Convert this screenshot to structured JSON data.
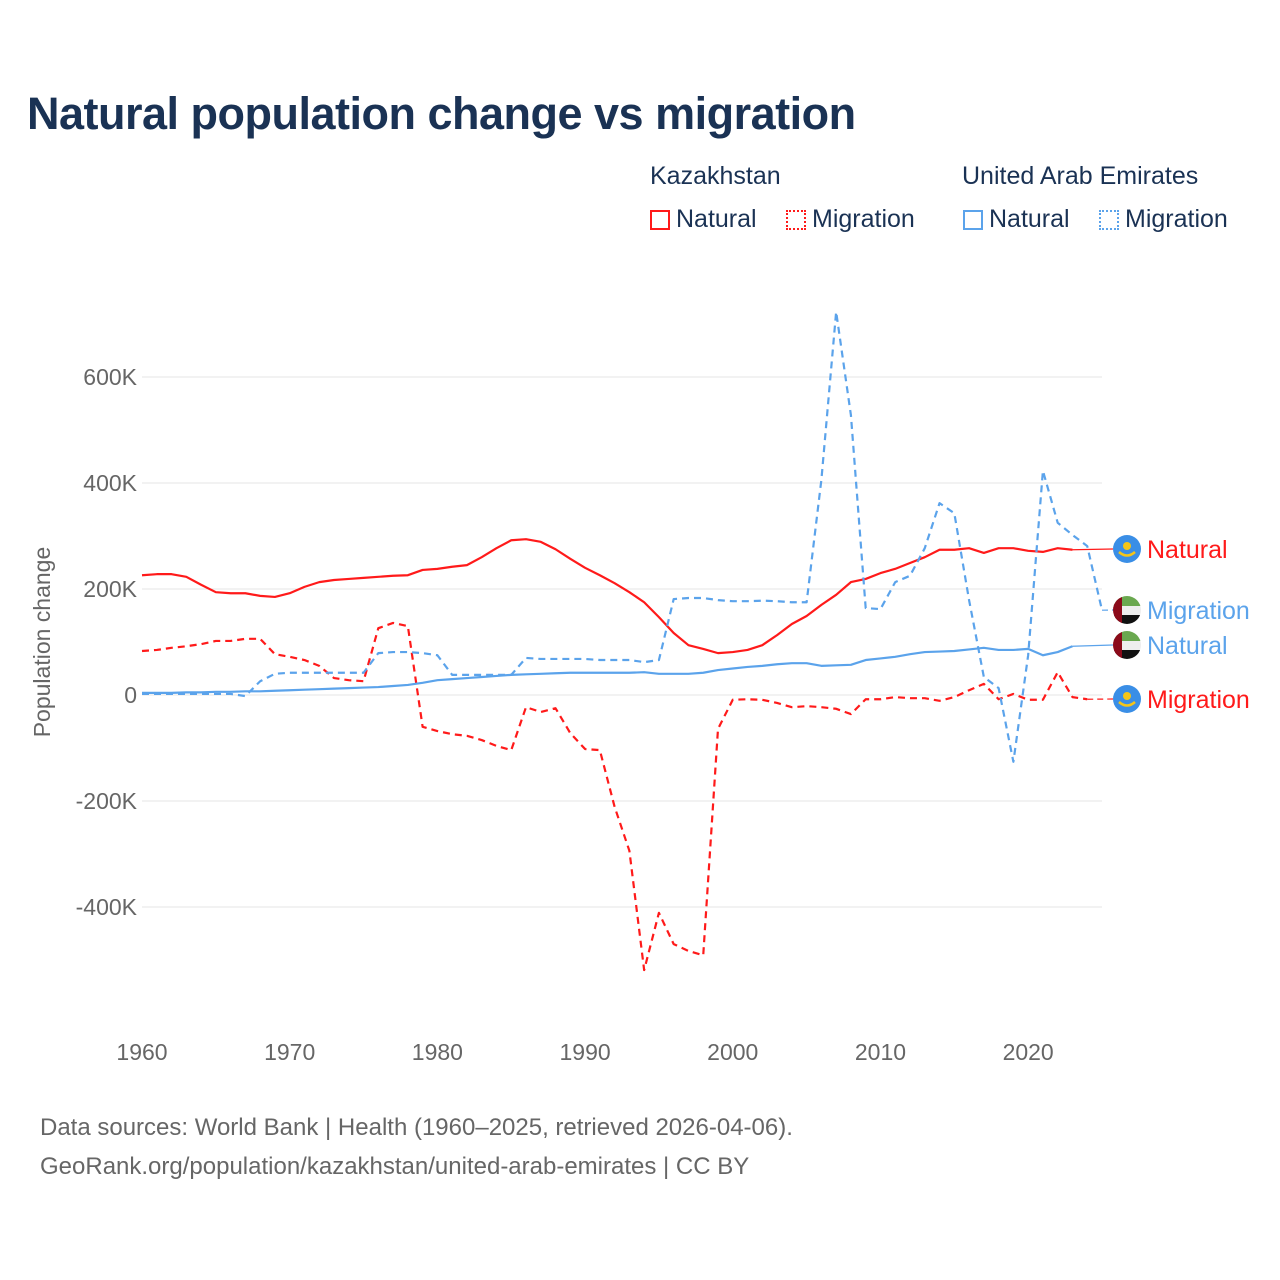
{
  "title": "Natural population change vs migration",
  "legend": {
    "groups": [
      {
        "name": "Kazakhstan",
        "items": [
          "Natural",
          "Migration"
        ]
      },
      {
        "name": "United Arab Emirates",
        "items": [
          "Natural",
          "Migration"
        ]
      }
    ]
  },
  "colors": {
    "kazakhstan": "#ff1a1a",
    "uae": "#5ba3eb",
    "title": "#1a3254"
  },
  "source": {
    "line1": "Data sources: World Bank | Health (1960–2025, retrieved 2026-04-06).",
    "line2": "GeoRank.org/population/kazakhstan/united-arab-emirates | CC BY"
  },
  "chart_data": {
    "type": "line",
    "ylabel": "Population change",
    "xlim": [
      1960,
      2025
    ],
    "ylim": [
      -560,
      760
    ],
    "y_unit": "thousands",
    "xticks": [
      1960,
      1970,
      1980,
      1990,
      2000,
      2010,
      2020
    ],
    "xtick_labels": [
      "1960",
      "1970",
      "1980",
      "1990",
      "2000",
      "2010",
      "2020"
    ],
    "yticks": [
      -400,
      -200,
      0,
      200,
      400,
      600
    ],
    "ytick_labels": [
      "-400K",
      "-200K",
      "0",
      "200K",
      "400K",
      "600K"
    ],
    "series": [
      {
        "name": "Natural",
        "country": "Kazakhstan",
        "color": "#ff1a1a",
        "dash": false,
        "start": 1960,
        "values": [
          226,
          228,
          228,
          223,
          208,
          194,
          192,
          192,
          187,
          185,
          192,
          204,
          213,
          217,
          219,
          221,
          223,
          225,
          226,
          236,
          238,
          242,
          245,
          260,
          277,
          292,
          294,
          289,
          275,
          257,
          240,
          226,
          211,
          194,
          175,
          147,
          117,
          94,
          87,
          79,
          81,
          85,
          94,
          113,
          134,
          149,
          170,
          189,
          213,
          219,
          230,
          238,
          249,
          260,
          274,
          274,
          277,
          268,
          277,
          277,
          272,
          270,
          277,
          274
        ]
      },
      {
        "name": "Migration",
        "country": "Kazakhstan",
        "color": "#ff1a1a",
        "dash": true,
        "start": 1960,
        "values": [
          83,
          85,
          89,
          92,
          96,
          102,
          102,
          106,
          106,
          77,
          72,
          66,
          55,
          32,
          28,
          26,
          126,
          136,
          130,
          -60,
          -68,
          -74,
          -77,
          -85,
          -96,
          -104,
          -23,
          -32,
          -25,
          -72,
          -102,
          -104,
          -211,
          -294,
          -519,
          -411,
          -470,
          -483,
          -491,
          -64,
          -9,
          -8,
          -9,
          -15,
          -23,
          -21,
          -23,
          -26,
          -36,
          -8,
          -8,
          -4,
          -6,
          -6,
          -11,
          -4,
          9,
          21,
          -8,
          2,
          -9,
          -9,
          43,
          -4,
          -8
        ]
      },
      {
        "name": "Natural",
        "country": "United Arab Emirates",
        "color": "#5ba3eb",
        "dash": false,
        "start": 1960,
        "values": [
          4,
          4,
          4,
          5,
          5,
          6,
          6,
          7,
          7,
          8,
          9,
          10,
          11,
          12,
          13,
          14,
          15,
          17,
          19,
          23,
          28,
          30,
          32,
          34,
          36,
          38,
          39,
          40,
          41,
          42,
          42,
          42,
          42,
          42,
          43,
          40,
          40,
          40,
          42,
          47,
          50,
          53,
          55,
          58,
          60,
          60,
          55,
          56,
          57,
          66,
          69,
          72,
          77,
          81,
          82,
          83,
          86,
          89,
          85,
          85,
          87,
          75,
          81,
          92
        ]
      },
      {
        "name": "Migration",
        "country": "United Arab Emirates",
        "color": "#5ba3eb",
        "dash": true,
        "start": 1960,
        "values": [
          2,
          2,
          2,
          2,
          2,
          2,
          2,
          -2,
          26,
          40,
          42,
          42,
          42,
          42,
          42,
          42,
          79,
          81,
          81,
          79,
          75,
          38,
          38,
          38,
          38,
          38,
          70,
          68,
          68,
          68,
          68,
          66,
          66,
          66,
          62,
          66,
          181,
          183,
          183,
          179,
          177,
          177,
          178,
          177,
          175,
          175,
          406,
          723,
          528,
          164,
          162,
          213,
          225,
          277,
          362,
          343,
          179,
          34,
          13,
          -126,
          75,
          423,
          325,
          302,
          281,
          160
        ]
      }
    ],
    "end_labels": [
      {
        "text": "Natural",
        "country": "Kazakhstan"
      },
      {
        "text": "Migration",
        "country": "United Arab Emirates"
      },
      {
        "text": "Natural",
        "country": "United Arab Emirates"
      },
      {
        "text": "Migration",
        "country": "Kazakhstan"
      }
    ]
  }
}
